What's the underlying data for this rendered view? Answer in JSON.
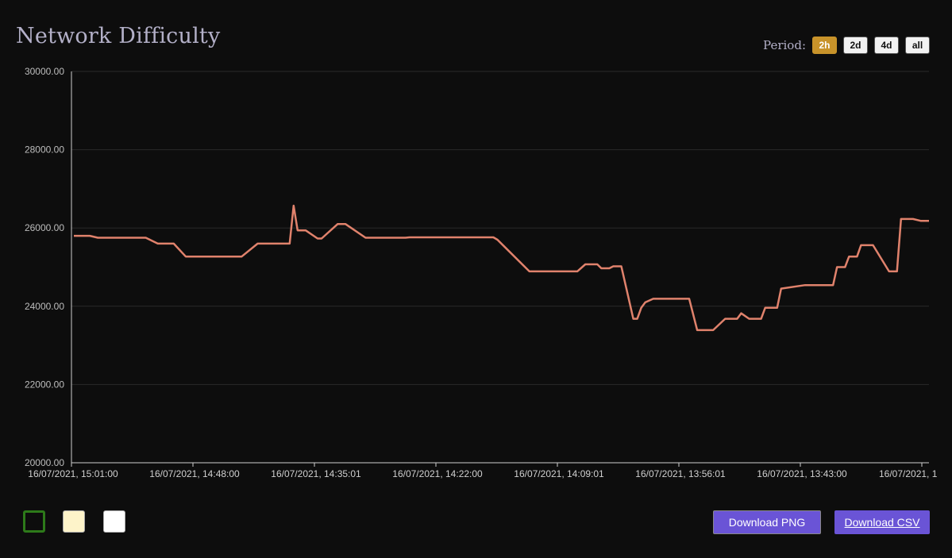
{
  "title": "Network Difficulty",
  "period": {
    "label": "Period:",
    "options": [
      "2h",
      "2d",
      "4d",
      "all"
    ],
    "active": "2h"
  },
  "swatches": [
    {
      "name": "dark-theme-swatch",
      "color": "#0d0d0d",
      "border": "#2d7a1a"
    },
    {
      "name": "cream-theme-swatch",
      "color": "#fdf3c9",
      "border": "#aaaaaa"
    },
    {
      "name": "white-theme-swatch",
      "color": "#ffffff",
      "border": "#aaaaaa"
    }
  ],
  "buttons": {
    "download_png": "Download PNG",
    "download_csv": "Download CSV"
  },
  "chart_data": {
    "type": "line",
    "ylim": [
      20000,
      30000
    ],
    "yticks": [
      "20000.00",
      "22000.00",
      "24000.00",
      "26000.00",
      "28000.00",
      "30000.00"
    ],
    "xticks": [
      "16/07/2021, 15:01:00",
      "16/07/2021, 14:48:00",
      "16/07/2021, 14:35:01",
      "16/07/2021, 14:22:00",
      "16/07/2021, 14:09:01",
      "16/07/2021, 13:56:01",
      "16/07/2021, 13:43:00",
      "16/07/2021, 1"
    ],
    "grid": true,
    "line_color": "#e0826c",
    "x": [
      0,
      4,
      6,
      9,
      11,
      14,
      18,
      21,
      25,
      28,
      31,
      41,
      42,
      46,
      48,
      49,
      51,
      54,
      55,
      56,
      58,
      61,
      62,
      66,
      68,
      73,
      81,
      83,
      84,
      89,
      91,
      100,
      105,
      106,
      114,
      116,
      117,
      118,
      120,
      122,
      124,
      126,
      128,
      131,
      132,
      134,
      135,
      136,
      137,
      140,
      141,
      142,
      143,
      145,
      146,
      149,
      154,
      156,
      157,
      159,
      160,
      163,
      165,
      166,
      167,
      169,
      171,
      172,
      173,
      176,
      177,
      183,
      184,
      185,
      190,
      191,
      193,
      194,
      196,
      197,
      200,
      204,
      206,
      207,
      210,
      212,
      214
    ],
    "y": [
      25800,
      25800,
      25750,
      25750,
      25750,
      25750,
      25750,
      25600,
      25600,
      25270,
      25270,
      25270,
      25270,
      25600,
      25600,
      25600,
      25600,
      25600,
      26570,
      25940,
      25940,
      25730,
      25730,
      26100,
      26100,
      25750,
      25750,
      25750,
      25760,
      25760,
      25760,
      25760,
      25760,
      25700,
      24890,
      24890,
      24890,
      24890,
      24890,
      24890,
      24890,
      24890,
      25070,
      25070,
      24970,
      24970,
      25020,
      25020,
      25020,
      23680,
      23680,
      23960,
      24100,
      24190,
      24190,
      24190,
      24190,
      23390,
      23390,
      23390,
      23390,
      23680,
      23680,
      23680,
      23820,
      23680,
      23680,
      23680,
      23960,
      23960,
      24450,
      24540,
      24540,
      24540,
      24540,
      25000,
      25000,
      25270,
      25270,
      25560,
      25560,
      24890,
      24890,
      26230,
      26230,
      26180,
      26180
    ]
  }
}
